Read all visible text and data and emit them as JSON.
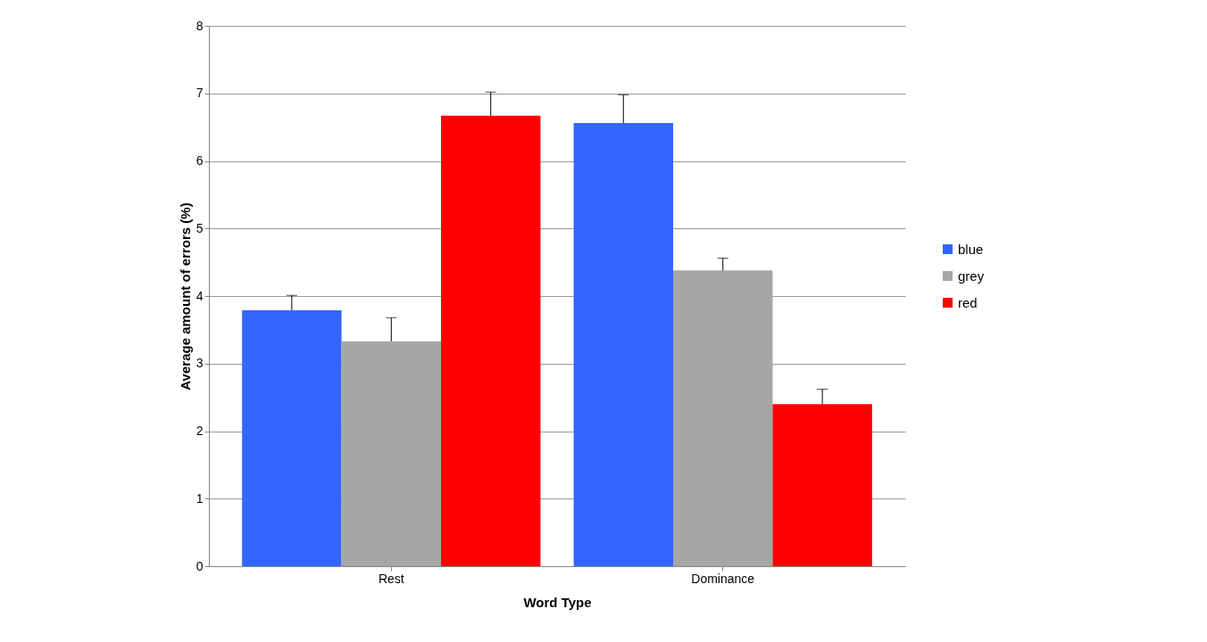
{
  "chart_data": {
    "type": "bar",
    "xlabel": "Word Type",
    "ylabel": "Average amount of errors (%)",
    "categories": [
      "Rest",
      "Dominance"
    ],
    "series": [
      {
        "name": "blue",
        "color": "#3366ff",
        "values": [
          3.79,
          6.56
        ],
        "errors": [
          0.22,
          0.42
        ]
      },
      {
        "name": "grey",
        "color": "#a6a6a6",
        "values": [
          3.33,
          4.38
        ],
        "errors": [
          0.35,
          0.18
        ]
      },
      {
        "name": "red",
        "color": "#ff0000",
        "values": [
          6.67,
          2.4
        ],
        "errors": [
          0.35,
          0.22
        ]
      }
    ],
    "ylim": [
      0,
      8
    ],
    "yticks": [
      0,
      1,
      2,
      3,
      4,
      5,
      6,
      7,
      8
    ],
    "grid": "y",
    "legend": "right"
  }
}
